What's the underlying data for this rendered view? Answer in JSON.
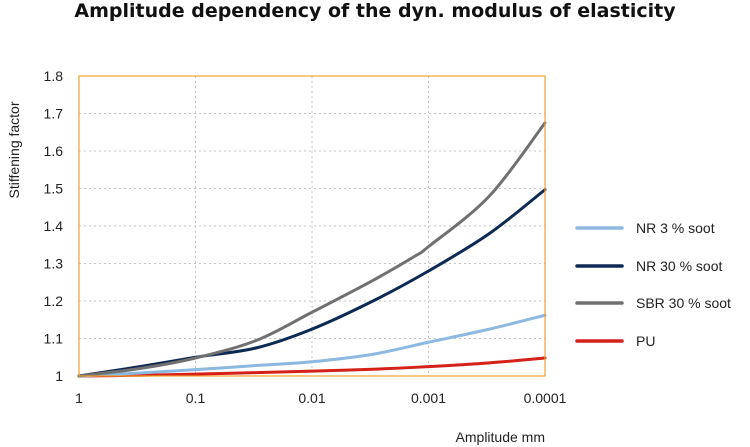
{
  "chart_data": {
    "type": "line",
    "title": "Amplitude dependency of the dyn. modulus of elasticity",
    "xlabel": "Amplitude mm",
    "ylabel": "Stiffening factor",
    "x_scale": "log",
    "x_reversed": true,
    "x_ticks": [
      1,
      0.1,
      0.01,
      0.001,
      0.0001
    ],
    "x_tick_labels": [
      "1",
      "0.1",
      "0.01",
      "0.001",
      "0.0001"
    ],
    "ylim": [
      1,
      1.8
    ],
    "y_ticks": [
      1,
      1.1,
      1.2,
      1.3,
      1.4,
      1.5,
      1.6,
      1.7,
      1.8
    ],
    "y_tick_labels": [
      "1",
      "1.1",
      "1.2",
      "1.3",
      "1.4",
      "1.5",
      "1.6",
      "1.7",
      "1.8"
    ],
    "grid": true,
    "legend_position": "right",
    "series": [
      {
        "name": "NR 3 % soot",
        "color": "#8db8e0",
        "x": [
          1,
          0.3,
          0.1,
          0.03,
          0.01,
          0.003,
          0.001,
          0.0003,
          0.0001
        ],
        "y": [
          1.0,
          1.008,
          1.017,
          1.028,
          1.038,
          1.058,
          1.09,
          1.125,
          1.162
        ]
      },
      {
        "name": "NR 30 % soot",
        "color": "#0d2a55",
        "x": [
          1,
          0.3,
          0.1,
          0.03,
          0.01,
          0.003,
          0.001,
          0.0003,
          0.0001
        ],
        "y": [
          1.0,
          1.025,
          1.05,
          1.075,
          1.125,
          1.2,
          1.28,
          1.38,
          1.497
        ]
      },
      {
        "name": "SBR 30 % soot",
        "color": "#707070",
        "x": [
          1,
          0.3,
          0.1,
          0.03,
          0.01,
          0.003,
          0.0013,
          0.001,
          0.0003,
          0.0001
        ],
        "y": [
          1.0,
          1.02,
          1.048,
          1.095,
          1.17,
          1.255,
          1.32,
          1.345,
          1.48,
          1.675
        ]
      },
      {
        "name": "PU",
        "color": "#d6201a",
        "x": [
          1,
          0.3,
          0.1,
          0.03,
          0.01,
          0.003,
          0.001,
          0.0003,
          0.0001
        ],
        "y": [
          1.0,
          1.002,
          1.005,
          1.009,
          1.013,
          1.018,
          1.025,
          1.035,
          1.048
        ]
      }
    ]
  }
}
